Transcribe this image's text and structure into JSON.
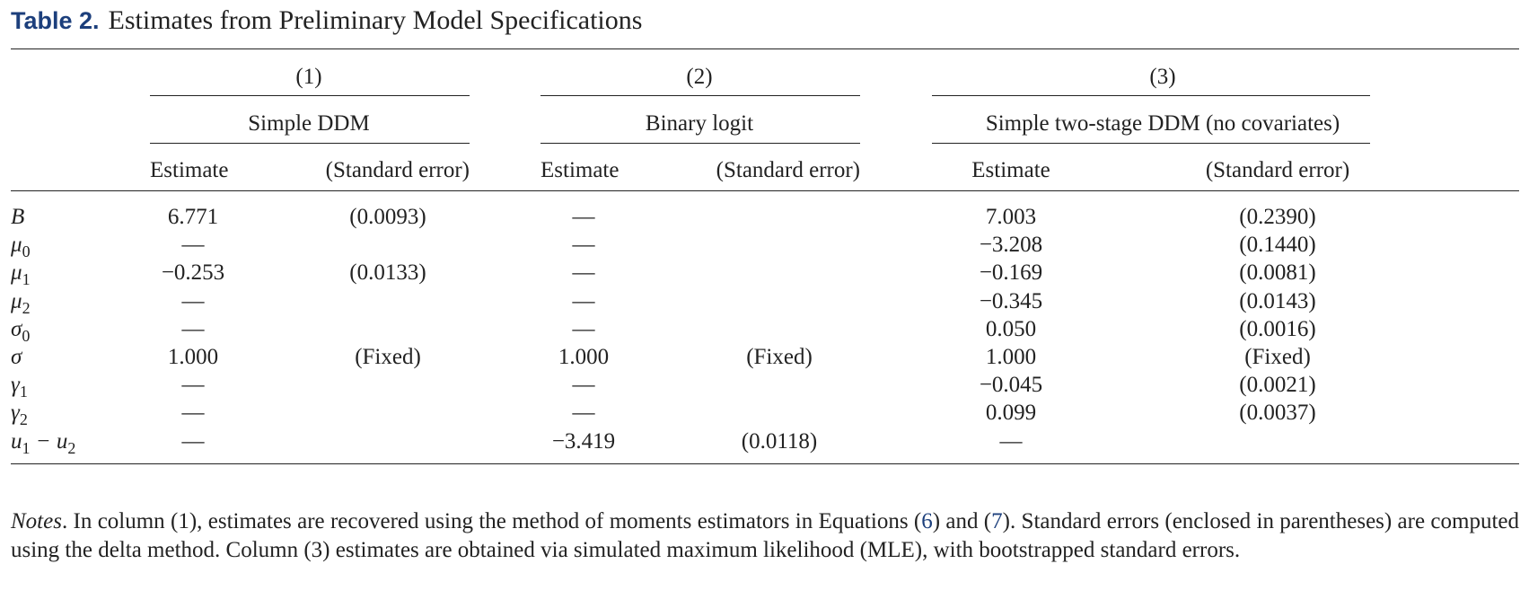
{
  "title": {
    "label": "Table 2.",
    "text": "Estimates from Preliminary Model Specifications"
  },
  "columns": [
    {
      "number": "(1)",
      "model": "Simple DDM"
    },
    {
      "number": "(2)",
      "model": "Binary logit"
    },
    {
      "number": "(3)",
      "model": "Simple two-stage DDM (no covariates)"
    }
  ],
  "subheaders": {
    "estimate": "Estimate",
    "se": "(Standard error)"
  },
  "rows": [
    {
      "label": "B",
      "sub": "",
      "c1e": "6.771",
      "c1s": "(0.0093)",
      "c2e": "—",
      "c2s": "",
      "c3e": "7.003",
      "c3s": "(0.2390)"
    },
    {
      "label": "μ",
      "sub": "0",
      "c1e": "—",
      "c1s": "",
      "c2e": "—",
      "c2s": "",
      "c3e": "−3.208",
      "c3s": "(0.1440)"
    },
    {
      "label": "μ",
      "sub": "1",
      "c1e": "−0.253",
      "c1s": "(0.0133)",
      "c2e": "—",
      "c2s": "",
      "c3e": "−0.169",
      "c3s": "(0.0081)"
    },
    {
      "label": "μ",
      "sub": "2",
      "c1e": "—",
      "c1s": "",
      "c2e": "—",
      "c2s": "",
      "c3e": "−0.345",
      "c3s": "(0.0143)"
    },
    {
      "label": "σ",
      "sub": "0",
      "c1e": "—",
      "c1s": "",
      "c2e": "—",
      "c2s": "",
      "c3e": "0.050",
      "c3s": "(0.0016)"
    },
    {
      "label": "σ",
      "sub": "",
      "c1e": "1.000",
      "c1s": "(Fixed)",
      "c2e": "1.000",
      "c2s": "(Fixed)",
      "c3e": "1.000",
      "c3s": "(Fixed)"
    },
    {
      "label": "γ",
      "sub": "1",
      "c1e": "—",
      "c1s": "",
      "c2e": "—",
      "c2s": "",
      "c3e": "−0.045",
      "c3s": "(0.0021)"
    },
    {
      "label": "γ",
      "sub": "2",
      "c1e": "—",
      "c1s": "",
      "c2e": "—",
      "c2s": "",
      "c3e": "0.099",
      "c3s": "(0.0037)"
    },
    {
      "label": "u",
      "sub": "1",
      "label2": " − u",
      "sub2": "2",
      "c1e": "—",
      "c1s": "",
      "c2e": "−3.419",
      "c2s": "(0.0118)",
      "c3e": "—",
      "c3s": ""
    }
  ],
  "notes": {
    "lead": "Notes",
    "part1": ". In column (1), estimates are recovered using the method of moments estimators in Equations (",
    "eq6": "6",
    "part2": ") and (",
    "eq7": "7",
    "part3": "). Standard errors (enclosed in parentheses) are computed using the delta method. Column (3) estimates are obtained via simulated maximum likelihood (MLE), with bootstrapped standard errors."
  }
}
